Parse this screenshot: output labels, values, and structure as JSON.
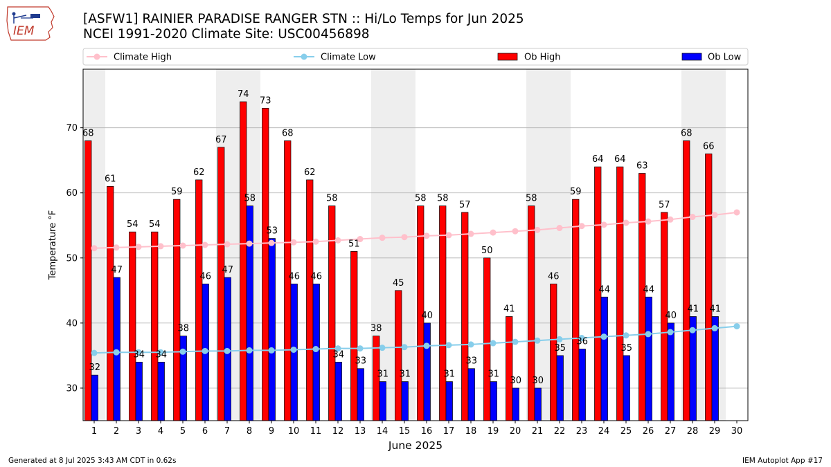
{
  "header": {
    "title_line1": "[ASFW1] RAINIER PARADISE RANGER STN :: Hi/Lo Temps for Jun 2025",
    "title_line2": "NCEI 1991-2020 Climate Site: USC00456898",
    "logo_text": "IEM"
  },
  "footer": {
    "generated": "Generated at 8 Jul 2025 3:43 AM CDT in 0.62s",
    "app": "IEM Autoplot App #17"
  },
  "chart_data": {
    "type": "bar",
    "xlabel": "June 2025",
    "ylabel": "Temperature °F",
    "ylim": [
      25,
      79
    ],
    "yticks": [
      30,
      40,
      50,
      60,
      70
    ],
    "grid": true,
    "legend_position": "top",
    "weekend_shading_days": [
      1,
      7,
      8,
      14,
      15,
      21,
      22,
      28,
      29
    ],
    "categories": [
      1,
      2,
      3,
      4,
      5,
      6,
      7,
      8,
      9,
      10,
      11,
      12,
      13,
      14,
      15,
      16,
      17,
      18,
      19,
      20,
      21,
      22,
      23,
      24,
      25,
      26,
      27,
      28,
      29,
      30
    ],
    "series": [
      {
        "name": "Ob High",
        "kind": "bar",
        "color": "#ff0000",
        "values": [
          68,
          61,
          54,
          54,
          59,
          62,
          67,
          74,
          73,
          68,
          62,
          58,
          51,
          38,
          45,
          58,
          58,
          57,
          50,
          41,
          58,
          46,
          59,
          64,
          64,
          63,
          57,
          68,
          66,
          null
        ]
      },
      {
        "name": "Ob Low",
        "kind": "bar",
        "color": "#0000ff",
        "values": [
          32,
          47,
          34,
          34,
          38,
          46,
          47,
          58,
          53,
          46,
          46,
          34,
          33,
          31,
          31,
          40,
          31,
          33,
          31,
          30,
          30,
          35,
          36,
          44,
          35,
          44,
          40,
          41,
          41,
          null
        ]
      },
      {
        "name": "Climate High",
        "kind": "line",
        "color": "#ffc0cb",
        "values": [
          51.5,
          51.6,
          51.7,
          51.8,
          51.9,
          52.0,
          52.1,
          52.2,
          52.3,
          52.4,
          52.5,
          52.7,
          52.9,
          53.1,
          53.2,
          53.4,
          53.5,
          53.7,
          53.9,
          54.1,
          54.3,
          54.6,
          54.9,
          55.1,
          55.4,
          55.6,
          55.9,
          56.3,
          56.6,
          57.0
        ]
      },
      {
        "name": "Climate Low",
        "kind": "line",
        "color": "#87ceeb",
        "values": [
          35.4,
          35.5,
          35.5,
          35.5,
          35.6,
          35.7,
          35.7,
          35.8,
          35.8,
          35.9,
          36.0,
          36.1,
          36.1,
          36.2,
          36.3,
          36.5,
          36.6,
          36.7,
          36.9,
          37.1,
          37.3,
          37.5,
          37.7,
          37.9,
          38.1,
          38.3,
          38.6,
          38.9,
          39.2,
          39.5
        ]
      }
    ]
  }
}
